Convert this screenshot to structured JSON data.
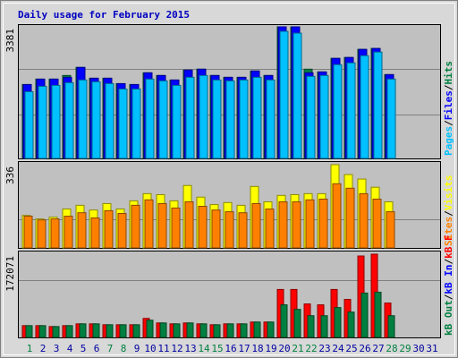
{
  "chart_data": [
    {
      "type": "bar",
      "title": "Daily usage for February 2015",
      "ylim": [
        0,
        3381
      ],
      "yticks": [
        3381
      ],
      "legend_separator": "/",
      "series": [
        {
          "name": "Hits",
          "color": "#008040",
          "values": [
            1899,
            2038,
            2038,
            2131,
            2339,
            2061,
            2061,
            1922,
            1899,
            2200,
            2131,
            2015,
            2270,
            2293,
            2131,
            2084,
            2084,
            2247,
            2131,
            3381,
            3381,
            2293,
            2223,
            2571,
            2594,
            2802,
            2826,
            2154,
            null,
            null,
            null
          ]
        },
        {
          "name": "Files",
          "color": "#0000ff",
          "values": [
            1899,
            2038,
            2038,
            2084,
            2339,
            2061,
            2061,
            1922,
            1899,
            2200,
            2131,
            2015,
            2270,
            2293,
            2131,
            2084,
            2084,
            2247,
            2131,
            3381,
            3381,
            2200,
            2223,
            2571,
            2594,
            2802,
            2826,
            2154,
            null,
            null,
            null
          ]
        },
        {
          "name": "Pages",
          "color": "#00c0ff",
          "values": [
            1714,
            1853,
            1876,
            1945,
            2015,
            1969,
            1922,
            1783,
            1783,
            2038,
            1992,
            1876,
            2084,
            2131,
            2015,
            1992,
            2015,
            2084,
            2015,
            3266,
            3219,
            2108,
            2131,
            2409,
            2455,
            2640,
            2733,
            2038,
            null,
            null,
            null
          ]
        }
      ]
    },
    {
      "type": "bar",
      "ylim": [
        0,
        336
      ],
      "yticks": [
        336
      ],
      "legend_separator": "/",
      "series": [
        {
          "name": "Visits",
          "color": "#ffff00",
          "values": [
            131,
            117,
            124,
            157,
            172,
            153,
            179,
            157,
            190,
            219,
            215,
            190,
            252,
            205,
            175,
            183,
            172,
            248,
            186,
            212,
            215,
            219,
            219,
            336,
            296,
            278,
            245,
            186,
            null,
            null,
            null
          ]
        },
        {
          "name": "Sites",
          "color": "#ff8000",
          "values": [
            128,
            113,
            117,
            128,
            142,
            121,
            150,
            139,
            172,
            194,
            179,
            161,
            186,
            168,
            153,
            146,
            142,
            179,
            157,
            186,
            186,
            194,
            197,
            259,
            241,
            219,
            197,
            146,
            null,
            null,
            null
          ]
        }
      ]
    },
    {
      "type": "bar",
      "ylim": [
        0,
        172071
      ],
      "yticks": [
        172071
      ],
      "legend_separator": "/",
      "categories": [
        "1",
        "2",
        "3",
        "4",
        "5",
        "6",
        "7",
        "8",
        "9",
        "10",
        "11",
        "12",
        "13",
        "14",
        "15",
        "16",
        "17",
        "18",
        "19",
        "20",
        "21",
        "22",
        "23",
        "24",
        "25",
        "26",
        "27",
        "28",
        "29",
        "30",
        "31"
      ],
      "label_colors": [
        "#008040",
        "#0000a0",
        "#0000a0",
        "#0000a0",
        "#0000a0",
        "#0000a0",
        "#008040",
        "#008040",
        "#0000a0",
        "#0000a0",
        "#0000a0",
        "#0000a0",
        "#0000a0",
        "#008040",
        "#008040",
        "#0000a0",
        "#0000a0",
        "#0000a0",
        "#0000a0",
        "#0000a0",
        "#008040",
        "#008040",
        "#0000a0",
        "#0000a0",
        "#0000a0",
        "#0000a0",
        "#0000a0",
        "#008040",
        "#008040",
        "#0000a0",
        "#0000a0"
      ],
      "series": [
        {
          "name": "kB F",
          "color": "#ff0000",
          "values": [
            24314,
            24314,
            22444,
            24314,
            28055,
            28055,
            26184,
            26184,
            26184,
            39276,
            29925,
            28055,
            29925,
            28055,
            26184,
            28055,
            28055,
            31795,
            31795,
            99126,
            99126,
            69201,
            67331,
            99126,
            78553,
            168327,
            172071,
            71071,
            null,
            null,
            null
          ]
        },
        {
          "name": "kB In",
          "color": "#0000ff",
          "values": [
            0,
            0,
            0,
            0,
            0,
            0,
            0,
            0,
            0,
            0,
            0,
            0,
            0,
            0,
            0,
            0,
            0,
            0,
            0,
            0,
            0,
            0,
            0,
            0,
            0,
            0,
            0,
            0,
            null,
            null,
            null
          ]
        },
        {
          "name": "kB Out",
          "color": "#008040",
          "values": [
            24314,
            24314,
            22444,
            24314,
            28055,
            28055,
            26184,
            26184,
            26184,
            35536,
            29925,
            28055,
            29925,
            28055,
            26184,
            28055,
            28055,
            31795,
            31795,
            67331,
            57979,
            44887,
            44887,
            61720,
            52368,
            91645,
            93515,
            44887,
            null,
            null,
            null
          ]
        }
      ]
    }
  ]
}
